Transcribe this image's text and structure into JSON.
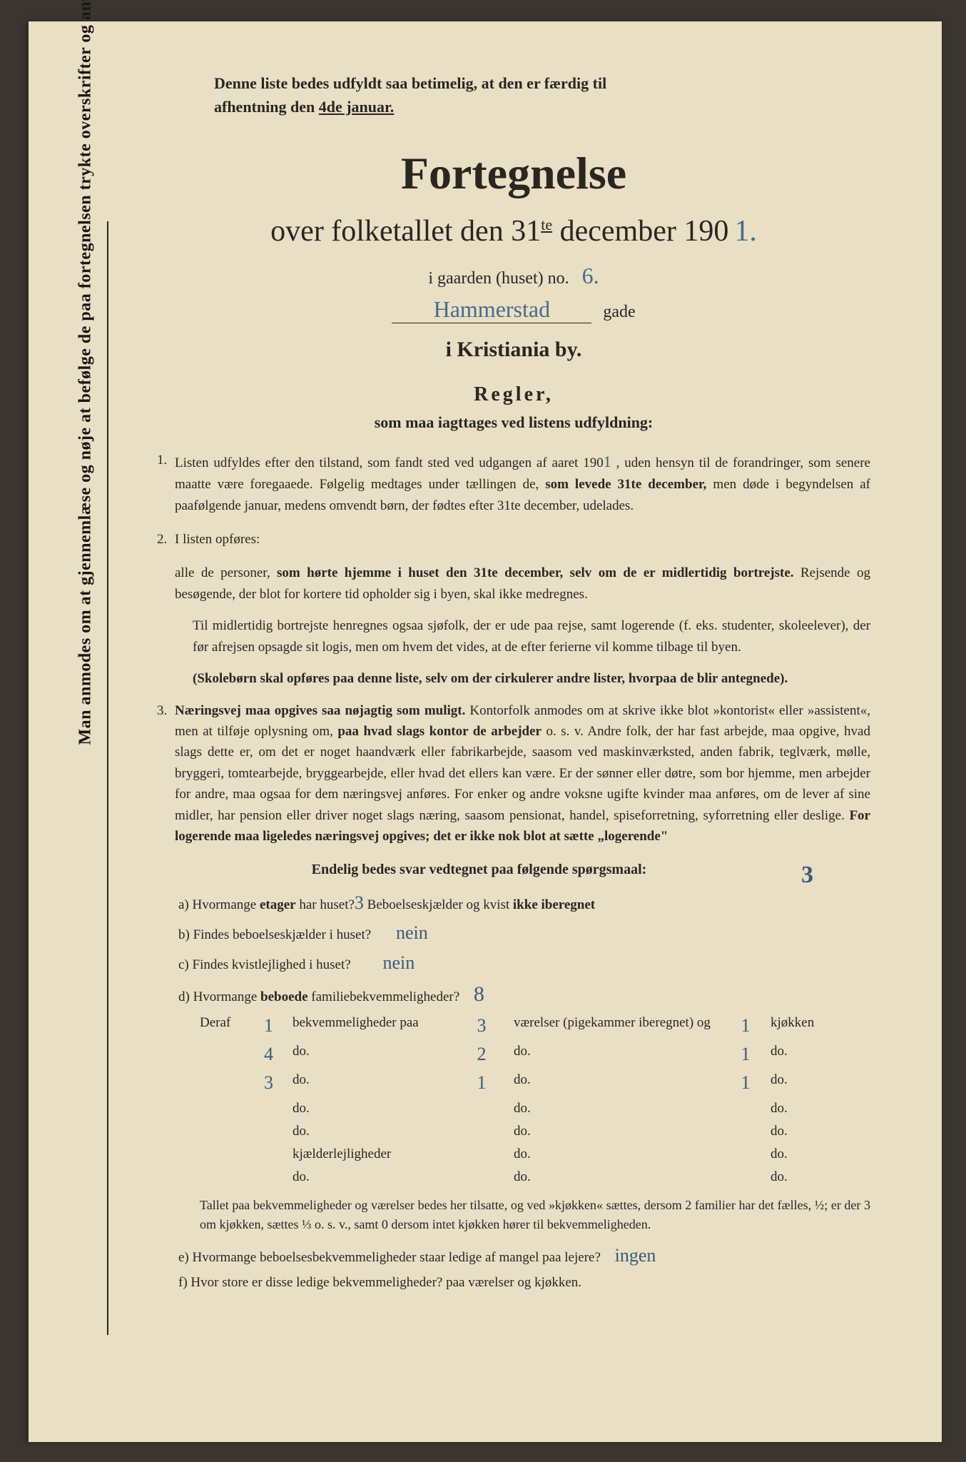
{
  "colors": {
    "page_bg": "#e8dfc5",
    "frame_bg": "#3a3530",
    "text": "#2a2620",
    "handwriting": "#3a5a7a"
  },
  "vertical_text": "Man anmodes om at gjennemlæse og nøje at befølge de paa fortegnelsen trykte overskrifter og anvisninger.",
  "top_note_1": "Denne liste bedes udfyldt saa betimelig, at den er færdig til",
  "top_note_2": "afhentning den ",
  "top_note_underline": "4de januar.",
  "title": "Fortegnelse",
  "subtitle_pre": "over folketallet den 31",
  "subtitle_sup": "te",
  "subtitle_post": " december 190",
  "year_hw": "1.",
  "gaarden_label": "i gaarden (huset) no.",
  "gaarden_no": "6.",
  "gade_hw": "Hammerstad",
  "gade_label": "gade",
  "city": "i Kristiania by.",
  "regler_title": "Regler,",
  "regler_sub": "som maa iagttages ved listens udfyldning:",
  "rule1_a": "Listen udfyldes efter den tilstand, som fandt sted ved udgangen af aaret 190",
  "rule1_year": "1",
  "rule1_b": " , uden hensyn til de forandringer, som senere maatte være foregaaede. Følgelig medtages under tællingen de, ",
  "rule1_bold": "som levede 31te december,",
  "rule1_c": " men døde i begyndelsen af paafølgende januar, medens omvendt børn, der fødtes efter 31te december, udelades.",
  "rule2_intro": "I listen opføres:",
  "rule2_a": "alle de personer, ",
  "rule2_bold": "som hørte hjemme i huset den 31te december, selv om de er midlertidig bortrejste.",
  "rule2_b": " Rejsende og besøgende, der blot for kortere tid opholder sig i byen, skal ikke medregnes.",
  "rule2_c": "Til midlertidig bortrejste henregnes ogsaa sjøfolk, der er ude paa rejse, samt logerende (f. eks. studenter, skoleelever), der før afrejsen opsagde sit logis, men om hvem det vides, at de efter ferierne vil komme tilbage til byen.",
  "rule2_skoleborn": "(Skolebørn skal opføres paa denne liste, selv om der cirkulerer andre lister, hvorpaa de blir antegnede).",
  "rule3_bold1": "Næringsvej maa opgives saa nøjagtig som muligt.",
  "rule3_a": " Kontorfolk anmodes om at skrive ikke blot »kontorist« eller »assistent«, men at tilføje oplysning om, ",
  "rule3_bold2": "paa hvad slags kontor de arbejder",
  "rule3_b": " o. s. v. Andre folk, der har fast arbejde, maa opgive, hvad slags dette er, om det er noget haandværk eller fabrikarbejde, saasom ved maskinværksted, anden fabrik, teglværk, mølle, bryggeri, tomtearbejde, bryggearbejde, eller hvad det ellers kan være. Er der sønner eller døtre, som bor hjemme, men arbejder for andre, maa ogsaa for dem næringsvej anføres. For enker og andre voksne ugifte kvinder maa anføres, om de lever af sine midler, har pension eller driver noget slags næring, saasom pensionat, handel, spiseforretning, syforretning eller deslige. ",
  "rule3_bold3": "For logerende maa ligeledes næringsvej opgives; det er ikke nok blot at sætte „logerende\"",
  "endelig": "Endelig bedes svar vedtegnet paa følgende spørgsmaal:",
  "qa_label": "a) Hvormange ",
  "qa_bold": "etager",
  "qa_text": " har huset?",
  "qa_hw": "3",
  "qa_after": " Beboelseskjælder og kvist ",
  "qa_bold2": "ikke iberegnet",
  "qa_hw2": "3",
  "qb": "b) Findes beboelseskjælder i huset?",
  "qb_hw": "nein",
  "qc": "c) Findes kvistlejlighed i huset?",
  "qc_hw": "nein",
  "qd_a": "d) Hvormange ",
  "qd_bold": "beboede",
  "qd_b": " familiebekvemmeligheder?",
  "qd_hw": "8",
  "deraf_label": "Deraf",
  "rows": [
    {
      "n": "1",
      "label": "bekvemmeligheder paa",
      "v": "3",
      "rooms": "værelser (pigekammer iberegnet) og",
      "k": "1",
      "kj": "kjøkken"
    },
    {
      "n": "4",
      "label": "do.",
      "v": "2",
      "rooms": "do.",
      "k": "1",
      "kj": "do."
    },
    {
      "n": "3",
      "label": "do.",
      "v": "1",
      "rooms": "do.",
      "k": "1",
      "kj": "do."
    },
    {
      "n": "",
      "label": "do.",
      "v": "",
      "rooms": "do.",
      "k": "",
      "kj": "do."
    },
    {
      "n": "",
      "label": "do.",
      "v": "",
      "rooms": "do.",
      "k": "",
      "kj": "do."
    },
    {
      "n": "",
      "label": "kjælderlejligheder",
      "v": "",
      "rooms": "do.",
      "k": "",
      "kj": "do."
    },
    {
      "n": "",
      "label": "do.",
      "v": "",
      "rooms": "do.",
      "k": "",
      "kj": "do."
    }
  ],
  "footnote": "Tallet paa bekvemmeligheder og værelser bedes her tilsatte, og ved »kjøkken« sættes, dersom 2 familier har det fælles, ½; er der 3 om kjøkken, sættes ⅓ o. s. v., samt 0 dersom intet kjøkken hører til bekvemmeligheden.",
  "qe": "e) Hvormange beboelsesbekvemmeligheder staar ledige af mangel paa lejere?",
  "qe_hw": "ingen",
  "qf": "f) Hvor store er disse ledige bekvemmeligheder?          paa        værelser og        kjøkken."
}
